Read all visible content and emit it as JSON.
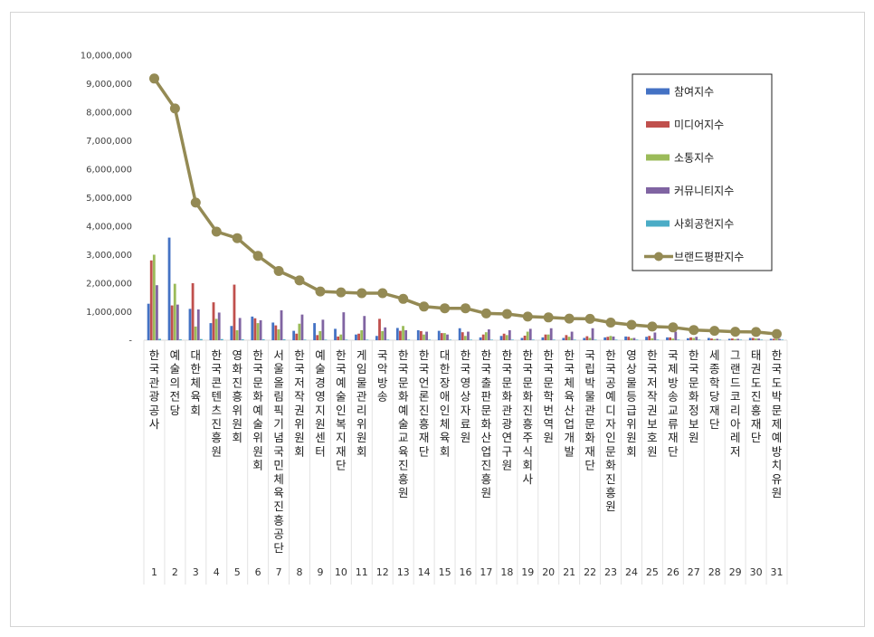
{
  "chart_data": {
    "type": "bar",
    "title": "",
    "xlabel": "",
    "ylabel": "",
    "ylim": [
      0,
      10000000
    ],
    "yticks": [
      "-",
      "1,000,000",
      "2,000,000",
      "3,000,000",
      "4,000,000",
      "5,000,000",
      "6,000,000",
      "7,000,000",
      "8,000,000",
      "9,000,000",
      "10,000,000"
    ],
    "ytick_values": [
      0,
      1000000,
      2000000,
      3000000,
      4000000,
      5000000,
      6000000,
      7000000,
      8000000,
      9000000,
      10000000
    ],
    "grid": false,
    "legend_position": "top-right",
    "categories": [
      "한국관광공사",
      "예술의전당",
      "대한체육회",
      "한국콘텐츠진흥원",
      "영화진흥위원회",
      "한국문화예술위원회",
      "서울올림픽기념국민체육진흥공단",
      "한국저작권위원회",
      "예술경영지원센터",
      "한국예술인복지재단",
      "게임물관리위원회",
      "국악방송",
      "한국문화예술교육진흥원",
      "한국언론진흥재단",
      "대한장애인체육회",
      "한국영상자료원",
      "한국출판문화산업진흥원",
      "한국문화관광연구원",
      "한국문화진흥주식회사",
      "한국문학번역원",
      "한국체육산업개발",
      "국립박물관문화재단",
      "한국공예디자인문화진흥원",
      "영상물등급위원회",
      "한국저작권보호원",
      "국제방송교류재단",
      "한국문화정보원",
      "세종학당재단",
      "그랜드코리아레저",
      "태권도진흥재단",
      "한국도박문제예방치유원"
    ],
    "ranks": [
      "1",
      "2",
      "3",
      "4",
      "5",
      "6",
      "7",
      "8",
      "9",
      "10",
      "11",
      "12",
      "13",
      "14",
      "15",
      "16",
      "17",
      "18",
      "19",
      "20",
      "21",
      "22",
      "23",
      "24",
      "25",
      "26",
      "27",
      "28",
      "29",
      "30",
      "31"
    ],
    "series": [
      {
        "name": "참여지수",
        "color": "#4472c4",
        "values": [
          1280000,
          3600000,
          1100000,
          600000,
          500000,
          830000,
          620000,
          330000,
          600000,
          400000,
          200000,
          150000,
          430000,
          350000,
          330000,
          420000,
          100000,
          150000,
          80000,
          100000,
          80000,
          80000,
          100000,
          130000,
          120000,
          100000,
          70000,
          80000,
          50000,
          80000,
          50000
        ]
      },
      {
        "name": "미디어지수",
        "color": "#c0504d",
        "values": [
          2800000,
          1220000,
          2000000,
          1330000,
          1950000,
          770000,
          520000,
          230000,
          180000,
          130000,
          230000,
          750000,
          330000,
          320000,
          250000,
          280000,
          200000,
          230000,
          160000,
          200000,
          180000,
          140000,
          120000,
          120000,
          150000,
          100000,
          100000,
          60000,
          60000,
          80000,
          50000
        ]
      },
      {
        "name": "소통지수",
        "color": "#9bbb59",
        "values": [
          3000000,
          1980000,
          480000,
          750000,
          350000,
          600000,
          380000,
          580000,
          320000,
          200000,
          350000,
          320000,
          500000,
          200000,
          250000,
          150000,
          280000,
          180000,
          300000,
          200000,
          120000,
          80000,
          150000,
          70000,
          70000,
          60000,
          80000,
          40000,
          40000,
          60000,
          40000
        ]
      },
      {
        "name": "커뮤니티지수",
        "color": "#8064a2",
        "values": [
          1930000,
          1250000,
          1080000,
          970000,
          780000,
          700000,
          1050000,
          900000,
          720000,
          980000,
          850000,
          450000,
          350000,
          300000,
          200000,
          300000,
          380000,
          350000,
          400000,
          420000,
          300000,
          420000,
          130000,
          80000,
          270000,
          300000,
          120000,
          50000,
          50000,
          60000,
          50000
        ]
      },
      {
        "name": "사회공헌지수",
        "color": "#4bacc6",
        "values": [
          50000,
          30000,
          40000,
          40000,
          30000,
          30000,
          30000,
          20000,
          20000,
          20000,
          20000,
          20000,
          20000,
          20000,
          20000,
          20000,
          20000,
          20000,
          20000,
          20000,
          20000,
          20000,
          20000,
          20000,
          20000,
          20000,
          20000,
          20000,
          20000,
          20000,
          20000
        ]
      },
      {
        "name": "브랜드평판지수",
        "color": "#948a54",
        "type": "line",
        "values": [
          9180000,
          8130000,
          4830000,
          3810000,
          3580000,
          2960000,
          2430000,
          2100000,
          1710000,
          1680000,
          1650000,
          1650000,
          1450000,
          1180000,
          1120000,
          1120000,
          940000,
          920000,
          830000,
          800000,
          760000,
          750000,
          620000,
          540000,
          480000,
          450000,
          360000,
          330000,
          300000,
          290000,
          220000
        ]
      }
    ]
  }
}
